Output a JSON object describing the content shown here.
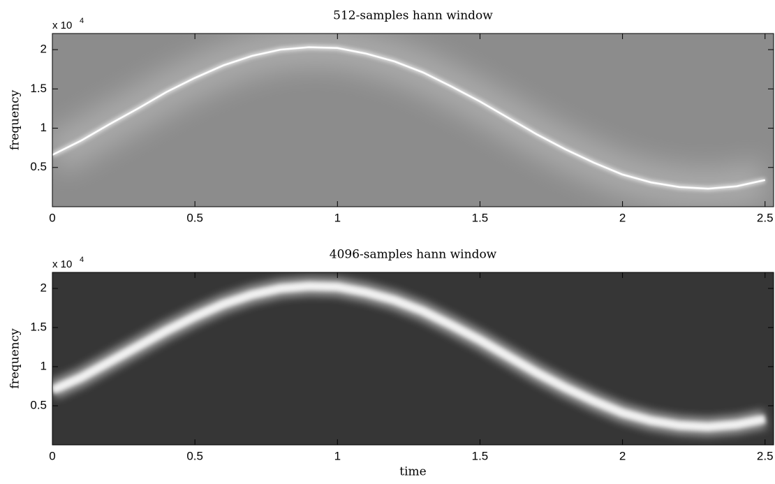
{
  "chart_data": [
    {
      "type": "spectrogram",
      "title": "512-samples hann window",
      "ylabel": "frequency",
      "y_multiplier": "x 10",
      "y_exponent": "4",
      "background": "#8c8c8c",
      "color": "#ffffff",
      "xlim": [
        0,
        2.53
      ],
      "ylim": [
        0,
        22050
      ],
      "xticks": [
        0,
        0.5,
        1,
        1.5,
        2,
        2.5
      ],
      "yticks": [
        {
          "value": 5000,
          "label": "0.5"
        },
        {
          "value": 10000,
          "label": "1"
        },
        {
          "value": 15000,
          "label": "1.5"
        },
        {
          "value": 20000,
          "label": "2"
        }
      ],
      "x": [
        0,
        0.1,
        0.2,
        0.3,
        0.4,
        0.5,
        0.6,
        0.7,
        0.8,
        0.9,
        1.0,
        1.1,
        1.2,
        1.3,
        1.4,
        1.5,
        1.6,
        1.7,
        1.8,
        1.9,
        2.0,
        2.1,
        2.2,
        2.3,
        2.4,
        2.5
      ],
      "values": [
        6600,
        8400,
        10500,
        12500,
        14600,
        16400,
        18000,
        19200,
        20000,
        20300,
        20200,
        19500,
        18500,
        17100,
        15300,
        13400,
        11300,
        9200,
        7300,
        5600,
        4100,
        3100,
        2500,
        2300,
        2600,
        3400
      ]
    },
    {
      "type": "spectrogram",
      "title": "4096-samples hann window",
      "ylabel": "frequency",
      "xlabel": "time",
      "y_multiplier": "x 10",
      "y_exponent": "4",
      "background": "#363636",
      "color": "#ffffff",
      "xlim": [
        0,
        2.53
      ],
      "ylim": [
        0,
        22050
      ],
      "xticks": [
        0,
        0.5,
        1,
        1.5,
        2,
        2.5
      ],
      "yticks": [
        {
          "value": 5000,
          "label": "0.5"
        },
        {
          "value": 10000,
          "label": "1"
        },
        {
          "value": 15000,
          "label": "1.5"
        },
        {
          "value": 20000,
          "label": "2"
        }
      ],
      "x": [
        0,
        0.1,
        0.2,
        0.3,
        0.4,
        0.5,
        0.6,
        0.7,
        0.8,
        0.9,
        1.0,
        1.1,
        1.2,
        1.3,
        1.4,
        1.5,
        1.6,
        1.7,
        1.8,
        1.9,
        2.0,
        2.1,
        2.2,
        2.3,
        2.4,
        2.5
      ],
      "values": [
        7000,
        8600,
        10600,
        12600,
        14600,
        16400,
        18000,
        19200,
        20000,
        20300,
        20200,
        19500,
        18500,
        17100,
        15300,
        13400,
        11300,
        9200,
        7300,
        5600,
        4100,
        3100,
        2500,
        2300,
        2600,
        3300
      ]
    }
  ]
}
